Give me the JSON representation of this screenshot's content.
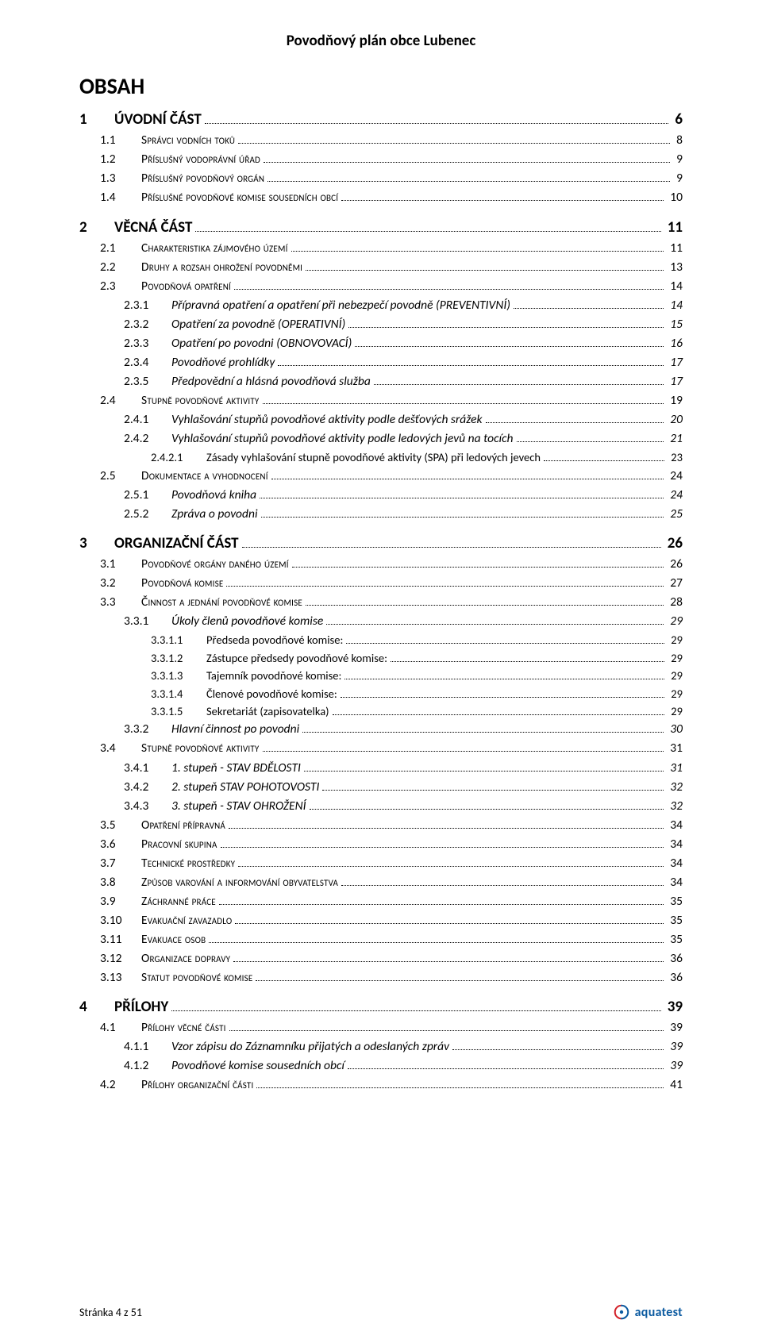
{
  "document_title": "Povodňový plán obce Lubenec",
  "toc_heading": "OBSAH",
  "footer_text": "Stránka 4 z 51",
  "logo_text": "aquatest",
  "logo_colors": {
    "red": "#d3222a",
    "blue": "#0b5aa0"
  },
  "toc": [
    {
      "level": 1,
      "num": "1",
      "label": "ÚVODNÍ ČÁST",
      "page": "6"
    },
    {
      "level": 2,
      "num": "1.1",
      "label": "Správci vodních toků",
      "page": "8"
    },
    {
      "level": 2,
      "num": "1.2",
      "label": "Příslušný vodoprávní úřad",
      "page": "9"
    },
    {
      "level": 2,
      "num": "1.3",
      "label": "Příslušný povodňový orgán",
      "page": "9"
    },
    {
      "level": 2,
      "num": "1.4",
      "label": "Příslušné povodňové komise sousedních obcí",
      "page": "10"
    },
    {
      "level": 1,
      "num": "2",
      "label": "VĚCNÁ ČÁST",
      "page": "11"
    },
    {
      "level": 2,
      "num": "2.1",
      "label": "Charakteristika zájmového území",
      "page": "11"
    },
    {
      "level": 2,
      "num": "2.2",
      "label": "Druhy a rozsah ohrožení povodněmi",
      "page": "13"
    },
    {
      "level": 2,
      "num": "2.3",
      "label": "Povodňová opatření",
      "page": "14"
    },
    {
      "level": 3,
      "num": "2.3.1",
      "label": "Přípravná opatření a opatření při nebezpečí povodně (PREVENTIVNÍ)",
      "page": "14"
    },
    {
      "level": 3,
      "num": "2.3.2",
      "label": "Opatření za povodně (OPERATIVNÍ)",
      "page": "15"
    },
    {
      "level": 3,
      "num": "2.3.3",
      "label": "Opatření po povodni (OBNOVOVACÍ)",
      "page": "16"
    },
    {
      "level": 3,
      "num": "2.3.4",
      "label": "Povodňové prohlídky",
      "page": "17"
    },
    {
      "level": 3,
      "num": "2.3.5",
      "label": "Předpovědní a hlásná povodňová služba",
      "page": "17"
    },
    {
      "level": 2,
      "num": "2.4",
      "label": "Stupně povodňové aktivity",
      "page": "19"
    },
    {
      "level": 3,
      "num": "2.4.1",
      "label": "Vyhlašování stupňů povodňové aktivity podle dešťových srážek",
      "page": "20"
    },
    {
      "level": 3,
      "num": "2.4.2",
      "label": "Vyhlašování stupňů povodňové aktivity podle ledových jevů na tocích",
      "page": "21"
    },
    {
      "level": 4,
      "num": "2.4.2.1",
      "label": "Zásady vyhlašování stupně povodňové aktivity (SPA) při ledových jevech",
      "page": "23"
    },
    {
      "level": 2,
      "num": "2.5",
      "label": "Dokumentace a vyhodnocení",
      "page": "24"
    },
    {
      "level": 3,
      "num": "2.5.1",
      "label": "Povodňová kniha",
      "page": "24"
    },
    {
      "level": 3,
      "num": "2.5.2",
      "label": "Zpráva o povodni",
      "page": "25"
    },
    {
      "level": 1,
      "num": "3",
      "label": "ORGANIZAČNÍ ČÁST",
      "page": "26"
    },
    {
      "level": 2,
      "num": "3.1",
      "label": "Povodňové orgány daného území",
      "page": "26"
    },
    {
      "level": 2,
      "num": "3.2",
      "label": "Povodňová komise",
      "page": "27"
    },
    {
      "level": 2,
      "num": "3.3",
      "label": "Činnost a jednání povodňové komise",
      "page": "28"
    },
    {
      "level": 3,
      "num": "3.3.1",
      "label": "Úkoly členů povodňové komise",
      "page": "29"
    },
    {
      "level": 4,
      "num": "3.3.1.1",
      "label": "Předseda povodňové komise:",
      "page": "29"
    },
    {
      "level": 4,
      "num": "3.3.1.2",
      "label": "Zástupce předsedy povodňové komise:",
      "page": "29"
    },
    {
      "level": 4,
      "num": "3.3.1.3",
      "label": "Tajemník povodňové komise:",
      "page": "29"
    },
    {
      "level": 4,
      "num": "3.3.1.4",
      "label": "Členové povodňové komise:",
      "page": "29"
    },
    {
      "level": 4,
      "num": "3.3.1.5",
      "label": "Sekretariát (zapisovatelka)",
      "page": "29"
    },
    {
      "level": 3,
      "num": "3.3.2",
      "label": "Hlavní činnost po povodni",
      "page": "30"
    },
    {
      "level": 2,
      "num": "3.4",
      "label": "Stupně povodňové aktivity",
      "page": "31"
    },
    {
      "level": 3,
      "num": "3.4.1",
      "label": "1. stupeň - STAV BDĚLOSTI",
      "page": "31"
    },
    {
      "level": 3,
      "num": "3.4.2",
      "label": "2. stupeň STAV POHOTOVOSTI",
      "page": "32"
    },
    {
      "level": 3,
      "num": "3.4.3",
      "label": "3. stupeň - STAV OHROŽENÍ",
      "page": "32"
    },
    {
      "level": 2,
      "num": "3.5",
      "label": "Opatření přípravná",
      "page": "34"
    },
    {
      "level": 2,
      "num": "3.6",
      "label": "Pracovní skupina",
      "page": "34"
    },
    {
      "level": 2,
      "num": "3.7",
      "label": "Technické prostředky",
      "page": "34"
    },
    {
      "level": 2,
      "num": "3.8",
      "label": "Způsob varování a informování obyvatelstva",
      "page": "34"
    },
    {
      "level": 2,
      "num": "3.9",
      "label": "Záchranné práce",
      "page": "35"
    },
    {
      "level": 2,
      "num": "3.10",
      "label": "Evakuační zavazadlo",
      "page": "35"
    },
    {
      "level": 2,
      "num": "3.11",
      "label": "Evakuace osob",
      "page": "35"
    },
    {
      "level": 2,
      "num": "3.12",
      "label": "Organizace dopravy",
      "page": "36"
    },
    {
      "level": 2,
      "num": "3.13",
      "label": "Statut povodňové komise",
      "page": "36"
    },
    {
      "level": 1,
      "num": "4",
      "label": "PŘÍLOHY",
      "page": "39"
    },
    {
      "level": 2,
      "num": "4.1",
      "label": "Přílohy věcné části",
      "page": "39"
    },
    {
      "level": 3,
      "num": "4.1.1",
      "label": "Vzor zápisu do Záznamníku přijatých a odeslaných zpráv",
      "page": "39"
    },
    {
      "level": 3,
      "num": "4.1.2",
      "label": "Povodňové komise sousedních obcí",
      "page": "39"
    },
    {
      "level": 2,
      "num": "4.2",
      "label": "Přílohy organizační části",
      "page": "41"
    }
  ]
}
